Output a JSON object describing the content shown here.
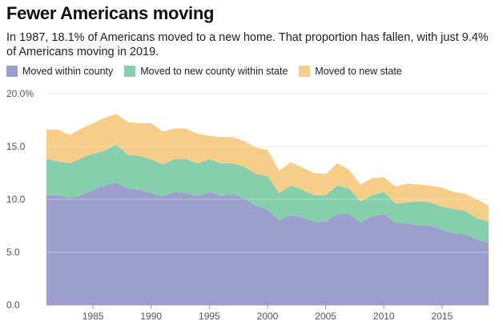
{
  "title": "Fewer Americans moving",
  "subtitle": "In 1987, 18.1% of Americans moved to a new home. That proportion has fallen, with just 9.4% of Americans moving in 2019.",
  "colors": {
    "within_county": "#9c9fcc",
    "new_county": "#85cfac",
    "new_state": "#f7cd8a",
    "grid": "#dddddd",
    "axis": "#999999"
  },
  "chart_data": {
    "type": "area",
    "stacked": true,
    "x": [
      1981,
      1982,
      1983,
      1984,
      1985,
      1986,
      1987,
      1988,
      1989,
      1990,
      1991,
      1992,
      1993,
      1994,
      1995,
      1996,
      1997,
      1998,
      1999,
      2000,
      2001,
      2002,
      2003,
      2004,
      2005,
      2006,
      2007,
      2008,
      2009,
      2010,
      2011,
      2012,
      2013,
      2014,
      2015,
      2016,
      2017,
      2018,
      2019
    ],
    "series": [
      {
        "name": "Moved within county",
        "values": [
          10.4,
          10.4,
          10.1,
          10.4,
          10.9,
          11.3,
          11.6,
          11.0,
          10.9,
          10.6,
          10.3,
          10.7,
          10.6,
          10.3,
          10.7,
          10.3,
          10.5,
          10.1,
          9.4,
          9.0,
          8.0,
          8.5,
          8.3,
          7.9,
          7.9,
          8.6,
          8.6,
          7.8,
          8.4,
          8.6,
          7.8,
          7.7,
          7.5,
          7.5,
          7.1,
          6.8,
          6.7,
          6.2,
          5.9
        ]
      },
      {
        "name": "Moved to new county within state",
        "values": [
          3.4,
          3.2,
          3.3,
          3.5,
          3.4,
          3.3,
          3.6,
          3.2,
          3.2,
          3.2,
          3.0,
          3.1,
          3.2,
          3.1,
          3.1,
          3.1,
          2.9,
          3.0,
          3.0,
          3.2,
          2.6,
          2.8,
          2.6,
          2.5,
          2.5,
          2.7,
          2.4,
          2.0,
          2.0,
          2.1,
          1.8,
          2.0,
          2.3,
          2.2,
          2.2,
          2.3,
          2.2,
          2.0,
          2.0
        ]
      },
      {
        "name": "Moved to new state",
        "values": [
          2.8,
          3.0,
          2.7,
          2.8,
          2.9,
          3.1,
          2.9,
          3.1,
          3.1,
          3.4,
          3.1,
          2.9,
          2.9,
          2.8,
          2.2,
          2.5,
          2.5,
          2.4,
          2.5,
          2.5,
          2.1,
          2.2,
          2.1,
          2.1,
          2.0,
          2.1,
          1.8,
          1.6,
          1.6,
          1.4,
          1.6,
          1.8,
          1.6,
          1.6,
          1.8,
          1.6,
          1.6,
          1.8,
          1.5
        ]
      }
    ],
    "y_ticks": [
      "0.0",
      "5.0",
      "10.0",
      "15.0",
      "20.0%"
    ],
    "y_tick_values": [
      0,
      5,
      10,
      15,
      20
    ],
    "x_ticks": [
      "1985",
      "1990",
      "1995",
      "2000",
      "2005",
      "2010",
      "2015"
    ],
    "x_tick_values": [
      1985,
      1990,
      1995,
      2000,
      2005,
      2010,
      2015
    ],
    "ylim": [
      0,
      20
    ],
    "xlim": [
      1981,
      2019
    ],
    "grid": true,
    "legend_position": "top-left"
  }
}
